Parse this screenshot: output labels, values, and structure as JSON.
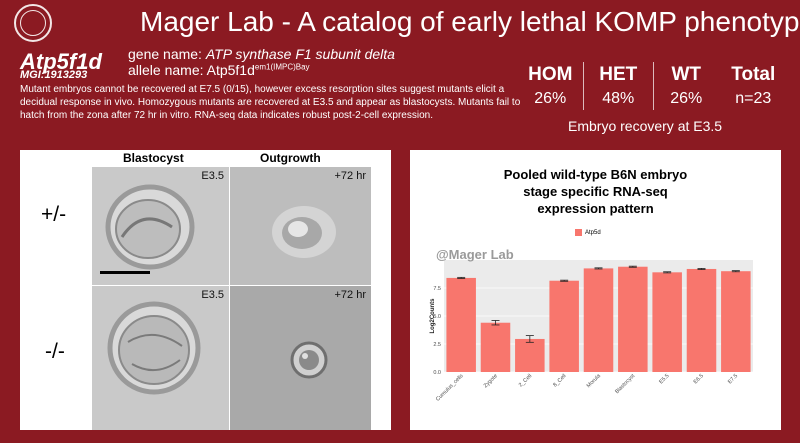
{
  "header": {
    "title": "Mager Lab - A catalog of early lethal KOMP phenotypes",
    "seal_icon": "university-seal-icon"
  },
  "gene": {
    "symbol": "Atp5f1d",
    "mgi": "MGI:1913293",
    "gene_name_label": "gene name: ",
    "gene_name": "ATP synthase F1 subunit delta",
    "allele_label": "allele name: ",
    "allele_base": "Atp5f1d",
    "allele_sup": "em1(IMPC)Bay"
  },
  "description": "Mutant embryos cannot be recovered at E7.5 (0/15), however excess resorption sites suggest mutants elicit a decidual response in vivo. Homozygous mutants are recovered at E3.5 and appear as blastocysts. Mutants fail to hatch from the zona after 72 hr in vitro. RNA-seq data indicates robust post-2-cell expression.",
  "recovery": {
    "headers": [
      "HOM",
      "HET",
      "WT",
      "Total"
    ],
    "values": [
      "26%",
      "48%",
      "26%",
      "n=23"
    ],
    "caption": "Embryo recovery at E3.5"
  },
  "images": {
    "col_blastocyst": "Blastocyst",
    "col_outgrowth": "Outgrowth",
    "row_het": "+/-",
    "row_hom": "-/-",
    "tag_het_blast": "E3.5",
    "tag_het_out": "+72 hr",
    "tag_hom_blast": "E3.5",
    "tag_hom_out": "+72 hr"
  },
  "chart": {
    "title_lines": [
      "Pooled wild-type B6N embryo",
      "stage specific RNA-seq",
      "expression pattern"
    ],
    "watermark": "@Mager Lab",
    "legend": "Atp5d"
  },
  "chart_data": {
    "type": "bar",
    "categories": [
      "Cumulus_cells",
      "Zygote",
      "2_Cell",
      "8_Cell",
      "Morula",
      "Blastocyst",
      "E5.5",
      "E6.5",
      "E7.5"
    ],
    "series": [
      {
        "name": "Atp5d",
        "values": [
          8.4,
          4.4,
          2.95,
          8.15,
          9.25,
          9.4,
          8.9,
          9.2,
          9.0
        ],
        "errors": [
          0.05,
          0.2,
          0.3,
          0.05,
          0.05,
          0.05,
          0.05,
          0.05,
          0.05
        ]
      }
    ],
    "ylabel": "Log2Counts",
    "xlabel": "",
    "ylim": [
      0,
      10
    ],
    "yticks": [
      0,
      2.5,
      5.0,
      7.5
    ],
    "ytick_labels": [
      "0.0",
      "2.5",
      "5.0",
      "7.5"
    ],
    "color": "#f8766d",
    "grid": true,
    "legend_position": "top"
  }
}
